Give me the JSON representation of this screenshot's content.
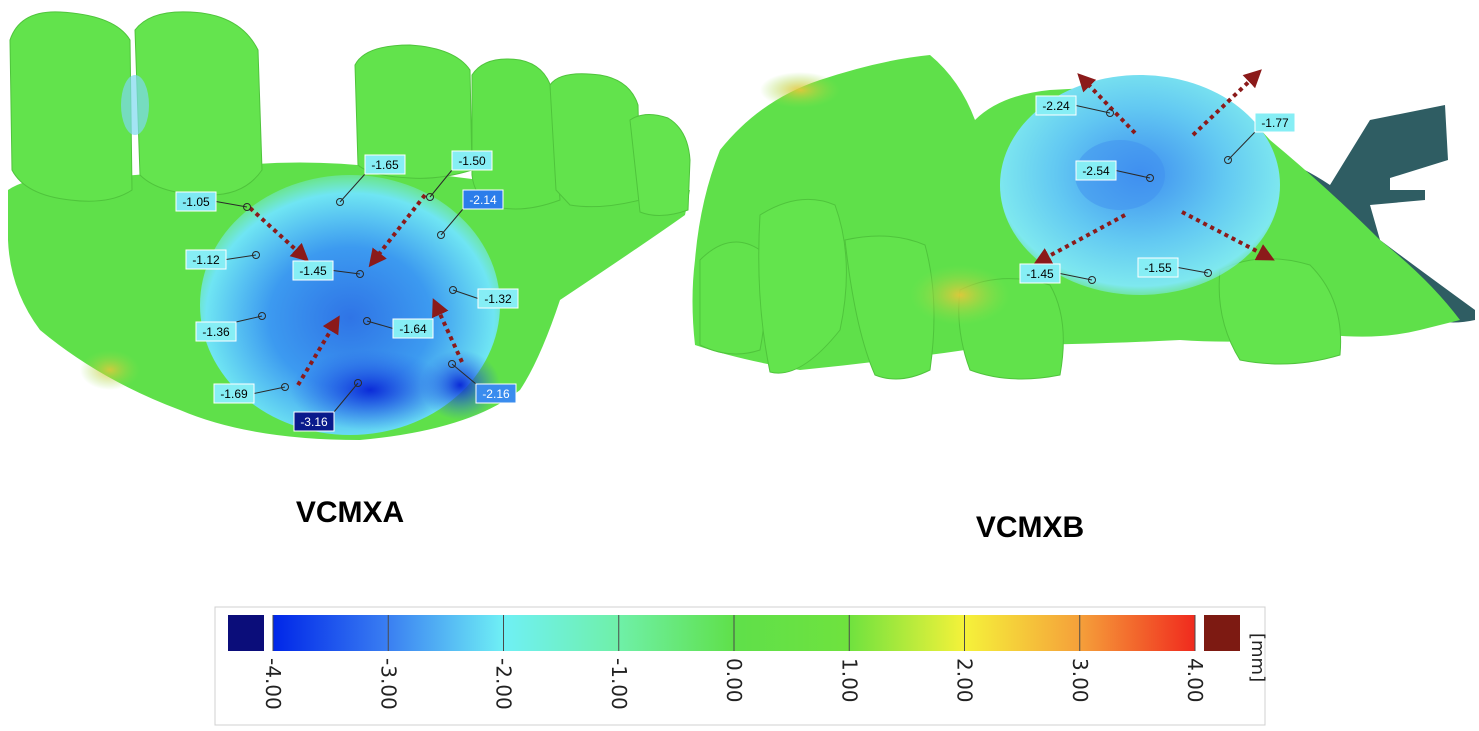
{
  "models": [
    {
      "title": "VCMXA",
      "callouts": [
        {
          "value": "-1.05",
          "color": "#7fe9f3",
          "text_color": "#000000"
        },
        {
          "value": "-1.65",
          "color": "#86eef5",
          "text_color": "#000000"
        },
        {
          "value": "-1.50",
          "color": "#86eef5",
          "text_color": "#000000"
        },
        {
          "value": "-2.14",
          "color": "#2c7dea",
          "text_color": "#ffffff"
        },
        {
          "value": "-1.12",
          "color": "#86eef5",
          "text_color": "#000000"
        },
        {
          "value": "-1.45",
          "color": "#86eef5",
          "text_color": "#000000"
        },
        {
          "value": "-1.32",
          "color": "#86eef5",
          "text_color": "#000000"
        },
        {
          "value": "-1.36",
          "color": "#86eef5",
          "text_color": "#000000"
        },
        {
          "value": "-1.64",
          "color": "#86eef5",
          "text_color": "#000000"
        },
        {
          "value": "-1.69",
          "color": "#86eef5",
          "text_color": "#000000"
        },
        {
          "value": "-2.16",
          "color": "#3a8cee",
          "text_color": "#ffffff"
        },
        {
          "value": "-3.16",
          "color": "#0a1a8c",
          "text_color": "#ffffff"
        }
      ]
    },
    {
      "title": "VCMXB",
      "callouts": [
        {
          "value": "-2.24",
          "color": "#86eef5",
          "text_color": "#000000"
        },
        {
          "value": "-1.77",
          "color": "#86eef5",
          "text_color": "#000000"
        },
        {
          "value": "-2.54",
          "color": "#86eef5",
          "text_color": "#000000"
        },
        {
          "value": "-1.45",
          "color": "#86eef5",
          "text_color": "#000000"
        },
        {
          "value": "-1.55",
          "color": "#86eef5",
          "text_color": "#000000"
        }
      ]
    }
  ],
  "color_scale": {
    "unit": "[mm]",
    "min": -4.0,
    "max": 4.0,
    "ticks": [
      "-4.00",
      "-3.00",
      "-2.00",
      "-1.00",
      "0.00",
      "1.00",
      "2.00",
      "3.00",
      "4.00"
    ],
    "below_range_color": "#0b0d7a",
    "above_range_color": "#7d1a12",
    "gradient_stops": [
      {
        "value": -4.0,
        "color": "#0026e8"
      },
      {
        "value": -3.0,
        "color": "#3a7ff2"
      },
      {
        "value": -2.0,
        "color": "#6ff0f5"
      },
      {
        "value": -1.0,
        "color": "#6ff0a8"
      },
      {
        "value": 0.0,
        "color": "#5fe04a"
      },
      {
        "value": 1.0,
        "color": "#6fe23e"
      },
      {
        "value": 2.0,
        "color": "#f5f23a"
      },
      {
        "value": 3.0,
        "color": "#f5a03a"
      },
      {
        "value": 4.0,
        "color": "#f02a1e"
      }
    ]
  },
  "colors": {
    "surface_green": "#5fe04a",
    "arrow_red": "#8b1a1a",
    "scan_teal": "#2f5d63"
  }
}
